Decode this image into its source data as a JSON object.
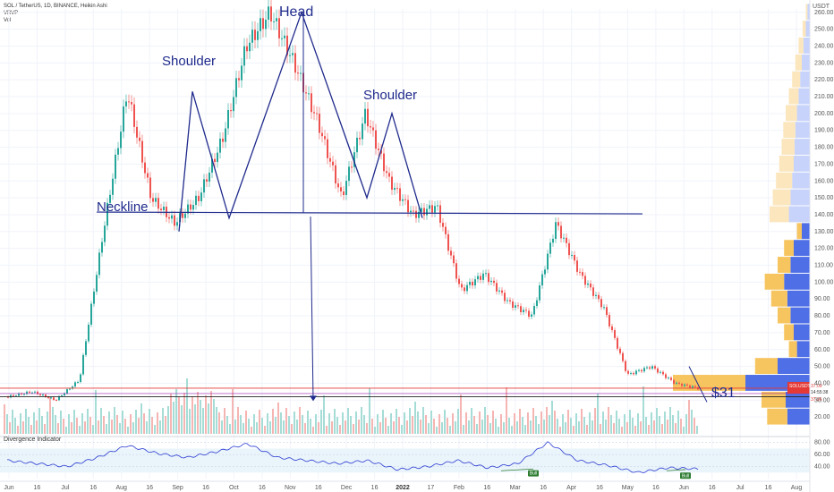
{
  "header": {
    "symbol_line": "SOL / TetherUS, 1D, BINANCE, Heikin Ashi",
    "vrvp": "VRVP",
    "vol": "Vol",
    "currency": "USDT"
  },
  "chart_data": [
    {
      "type": "candlestick",
      "title": "SOL / TetherUS, 1D, BINANCE, Heikin Ashi",
      "price_unit": "USDT",
      "ylim": [
        10,
        262
      ],
      "y_ticks": [
        20,
        30,
        40,
        50,
        60,
        70,
        80,
        90,
        100,
        110,
        120,
        130,
        140,
        150,
        160,
        170,
        180,
        190,
        200,
        210,
        220,
        230,
        240,
        250,
        260
      ],
      "x_ticks": [
        "Jun",
        "16",
        "Jul",
        "16",
        "Aug",
        "16",
        "Sep",
        "16",
        "Oct",
        "16",
        "Nov",
        "16",
        "Dec",
        "16",
        "2022",
        "17",
        "Feb",
        "16",
        "Mar",
        "16",
        "Apr",
        "16",
        "May",
        "16",
        "Jun",
        "16",
        "Jul",
        "16",
        "Aug"
      ],
      "price_path": [
        [
          "Jun",
          32
        ],
        [
          "Jul",
          35
        ],
        [
          "Aug",
          30
        ],
        [
          "Aug 16",
          42
        ],
        [
          "Sep",
          130
        ],
        [
          "Sep 3",
          213
        ],
        [
          "Sep 16",
          150
        ],
        [
          "Sep 28",
          135
        ],
        [
          "Oct",
          150
        ],
        [
          "Oct 16",
          185
        ],
        [
          "Nov",
          240
        ],
        [
          "Nov 6",
          260
        ],
        [
          "Nov 16",
          230
        ],
        [
          "Dec",
          195
        ],
        [
          "Dec 16",
          150
        ],
        [
          "Dec 26",
          200
        ],
        [
          "2022",
          160
        ],
        [
          "Jan 10",
          140
        ],
        [
          "Jan 17",
          145
        ],
        [
          "Feb",
          95
        ],
        [
          "Feb 16",
          105
        ],
        [
          "Mar",
          88
        ],
        [
          "Mar 16",
          80
        ],
        [
          "Apr",
          135
        ],
        [
          "Apr 16",
          105
        ],
        [
          "May",
          85
        ],
        [
          "May 12",
          45
        ],
        [
          "May 16",
          50
        ],
        [
          "Jun",
          40
        ],
        [
          "Jun 10",
          37
        ]
      ],
      "current_price_label": "SOLUSDT",
      "current_price": "37.09",
      "countdown": "14:55:38",
      "secondary_price": "37.06",
      "annotations": {
        "head": "Head",
        "left_shoulder": "Shoulder",
        "right_shoulder": "Shoulder",
        "neckline": "Neckline",
        "neckline_price": 141,
        "target": "$31",
        "target_price": 31
      },
      "volume_profile": {
        "bins": [
          {
            "price": 260,
            "up": 2,
            "down": 3
          },
          {
            "price": 250,
            "up": 4,
            "down": 5
          },
          {
            "price": 240,
            "up": 6,
            "down": 8
          },
          {
            "price": 230,
            "up": 8,
            "down": 10
          },
          {
            "price": 220,
            "up": 10,
            "down": 12
          },
          {
            "price": 210,
            "up": 12,
            "down": 14
          },
          {
            "price": 200,
            "up": 14,
            "down": 16
          },
          {
            "price": 190,
            "up": 15,
            "down": 18
          },
          {
            "price": 180,
            "up": 16,
            "down": 19
          },
          {
            "price": 170,
            "up": 18,
            "down": 20
          },
          {
            "price": 160,
            "up": 20,
            "down": 22
          },
          {
            "price": 150,
            "up": 22,
            "down": 24
          },
          {
            "price": 140,
            "up": 24,
            "down": 26
          },
          {
            "price": 130,
            "up": 6,
            "down": 10
          },
          {
            "price": 120,
            "up": 12,
            "down": 20
          },
          {
            "price": 110,
            "up": 16,
            "down": 24
          },
          {
            "price": 100,
            "up": 24,
            "down": 32
          },
          {
            "price": 90,
            "up": 20,
            "down": 28
          },
          {
            "price": 80,
            "up": 16,
            "down": 24
          },
          {
            "price": 70,
            "up": 12,
            "down": 20
          },
          {
            "price": 60,
            "up": 10,
            "down": 16
          },
          {
            "price": 50,
            "up": 28,
            "down": 40
          },
          {
            "price": 40,
            "up": 90,
            "down": 80
          },
          {
            "price": 30,
            "up": 30,
            "down": 30
          },
          {
            "price": 20,
            "up": 25,
            "down": 28
          }
        ]
      }
    },
    {
      "type": "line",
      "title": "Divergence Indicator",
      "ylim": [
        20,
        90
      ],
      "y_ticks": [
        40,
        60,
        80
      ],
      "labels": [
        "Bull",
        "Bull"
      ],
      "path": [
        [
          "Jun",
          50
        ],
        [
          "Jul",
          45
        ],
        [
          "Aug",
          40
        ],
        [
          "Aug 16",
          55
        ],
        [
          "Sep",
          75
        ],
        [
          "Sep 16",
          62
        ],
        [
          "Oct",
          55
        ],
        [
          "Oct 16",
          65
        ],
        [
          "Nov",
          78
        ],
        [
          "Nov 16",
          55
        ],
        [
          "Dec",
          50
        ],
        [
          "Dec 16",
          45
        ],
        [
          "2022",
          50
        ],
        [
          "17",
          35
        ],
        [
          "Feb",
          40
        ],
        [
          "Feb 16",
          50
        ],
        [
          "Mar",
          38
        ],
        [
          "Mar 16",
          45
        ],
        [
          "Apr",
          80
        ],
        [
          "Apr 16",
          50
        ],
        [
          "May",
          42
        ],
        [
          "May 16",
          30
        ],
        [
          "Jun",
          38
        ],
        [
          "Jun 10",
          36
        ]
      ]
    }
  ],
  "colors": {
    "up": "#26a69a",
    "down": "#ef5350",
    "annotation": "#1f2a8c",
    "profile_up": "#f7c55f",
    "profile_down": "#4f6fe6",
    "price_line": "#e53935"
  }
}
